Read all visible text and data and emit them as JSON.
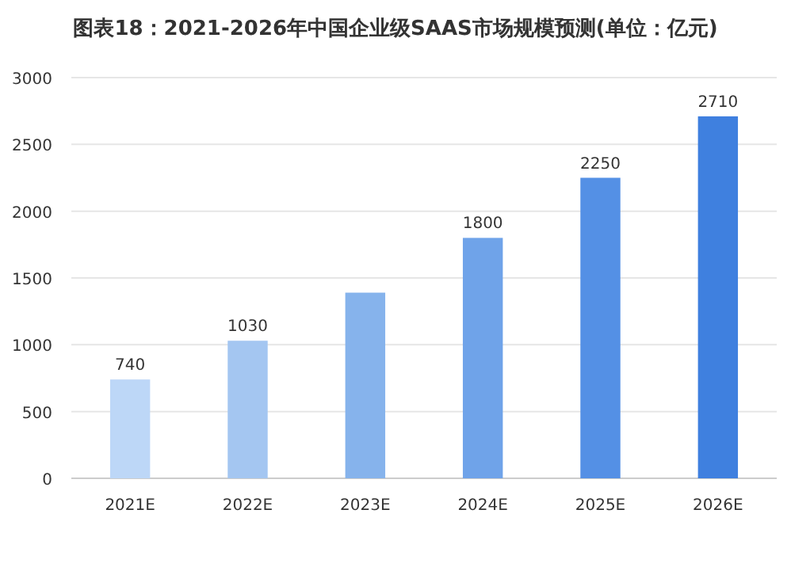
{
  "chart_data": {
    "type": "bar",
    "title": "图表18：2021-2026年中国企业级SAAS市场规模预测(单位：亿元)",
    "categories": [
      "2021E",
      "2022E",
      "2023E",
      "2024E",
      "2025E",
      "2026E"
    ],
    "values": [
      740,
      1030,
      1390,
      1800,
      2250,
      2710
    ],
    "value_labels": [
      "740",
      "1030",
      null,
      "1800",
      "2250",
      "2710"
    ],
    "colors": [
      "#bdd7f7",
      "#a4c6f1",
      "#86b3ec",
      "#6fa3e9",
      "#5490e5",
      "#3f80df"
    ],
    "ylim": [
      0,
      3000
    ],
    "yticks": [
      0,
      500,
      1000,
      1500,
      2000,
      2500,
      3000
    ],
    "grid": "y"
  }
}
